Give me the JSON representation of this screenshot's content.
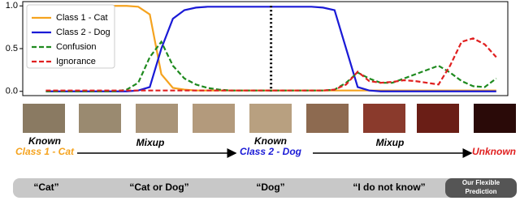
{
  "chart_data": {
    "type": "line",
    "x": [
      0,
      1,
      2,
      3,
      4,
      5,
      6,
      7,
      8,
      9,
      10,
      11,
      12,
      13,
      14,
      15,
      16,
      17,
      18,
      19,
      20,
      21,
      22,
      23,
      24,
      25,
      26,
      27,
      28,
      29,
      30,
      31,
      32,
      33,
      34,
      35,
      36,
      37,
      38,
      39
    ],
    "xlim": [
      -2,
      40
    ],
    "ylim": [
      -0.05,
      1.05
    ],
    "yticks": [
      {
        "value": 0,
        "label": "0.0"
      },
      0.5,
      {
        "value": 1,
        "label": "1.0"
      }
    ],
    "marker_x": 19.5,
    "legend": "upper left",
    "series": [
      {
        "name": "Class 1 - Cat",
        "color": "#f5a31f",
        "dashed": false,
        "values": [
          1,
          1,
          1,
          1,
          1,
          1,
          1,
          1,
          0.99,
          0.9,
          0.2,
          0.04,
          0.02,
          0.01,
          0.01,
          0.01,
          0.01,
          0.01,
          0.01,
          0.01,
          0.01,
          0.01,
          0.01,
          0.01,
          0.01,
          0.01,
          0.01,
          0.01,
          0.01,
          0.01,
          0.01,
          0.01,
          0.01,
          0.01,
          0.01,
          0.01,
          0.01,
          0.01,
          0.01,
          0.01
        ]
      },
      {
        "name": "Class 2 - Dog",
        "color": "#1a1ad6",
        "dashed": false,
        "values": [
          0,
          0,
          0,
          0,
          0,
          0,
          0,
          0,
          0.01,
          0.05,
          0.5,
          0.85,
          0.95,
          0.98,
          0.99,
          0.99,
          0.99,
          0.99,
          0.99,
          0.99,
          0.99,
          0.99,
          0.99,
          0.99,
          0.98,
          0.95,
          0.5,
          0.05,
          0.01,
          0,
          0,
          0,
          0,
          0,
          0,
          0,
          0,
          0,
          0,
          0
        ]
      },
      {
        "name": "Confusion",
        "color": "#1f8a1f",
        "dashed": true,
        "values": [
          0,
          0,
          0,
          0,
          0,
          0,
          0,
          0.02,
          0.1,
          0.4,
          0.58,
          0.3,
          0.15,
          0.08,
          0.04,
          0.02,
          0.01,
          0.01,
          0.01,
          0.01,
          0.01,
          0.01,
          0.01,
          0.01,
          0.01,
          0.02,
          0.1,
          0.22,
          0.15,
          0.1,
          0.1,
          0.15,
          0.2,
          0.25,
          0.3,
          0.22,
          0.12,
          0.06,
          0.05,
          0.15
        ]
      },
      {
        "name": "Ignorance",
        "color": "#e02020",
        "dashed": true,
        "values": [
          0.01,
          0.01,
          0.01,
          0.01,
          0.01,
          0.01,
          0.01,
          0.01,
          0.01,
          0.01,
          0.01,
          0.01,
          0.01,
          0.01,
          0.01,
          0.01,
          0.01,
          0.01,
          0.01,
          0.01,
          0.01,
          0.01,
          0.01,
          0.01,
          0.01,
          0.02,
          0.08,
          0.23,
          0.12,
          0.1,
          0.11,
          0.13,
          0.12,
          0.1,
          0.08,
          0.3,
          0.58,
          0.62,
          0.55,
          0.4
        ]
      }
    ]
  },
  "captions": [
    {
      "text": "Known",
      "sub": "Class 1 - Cat",
      "color": "#f5a31f"
    },
    {
      "text": "Mixup"
    },
    {
      "text": "Known",
      "sub": "Class 2 - Dog",
      "color": "#1a1ad6"
    },
    {
      "text": "Mixup"
    },
    {
      "text": "Unknown",
      "color": "#e02020"
    }
  ],
  "predictions": [
    "“Cat”",
    "“Cat or Dog”",
    "“Dog”",
    "“I do not know”"
  ],
  "prediction_label": [
    "Our Flexible",
    "Prediction"
  ]
}
